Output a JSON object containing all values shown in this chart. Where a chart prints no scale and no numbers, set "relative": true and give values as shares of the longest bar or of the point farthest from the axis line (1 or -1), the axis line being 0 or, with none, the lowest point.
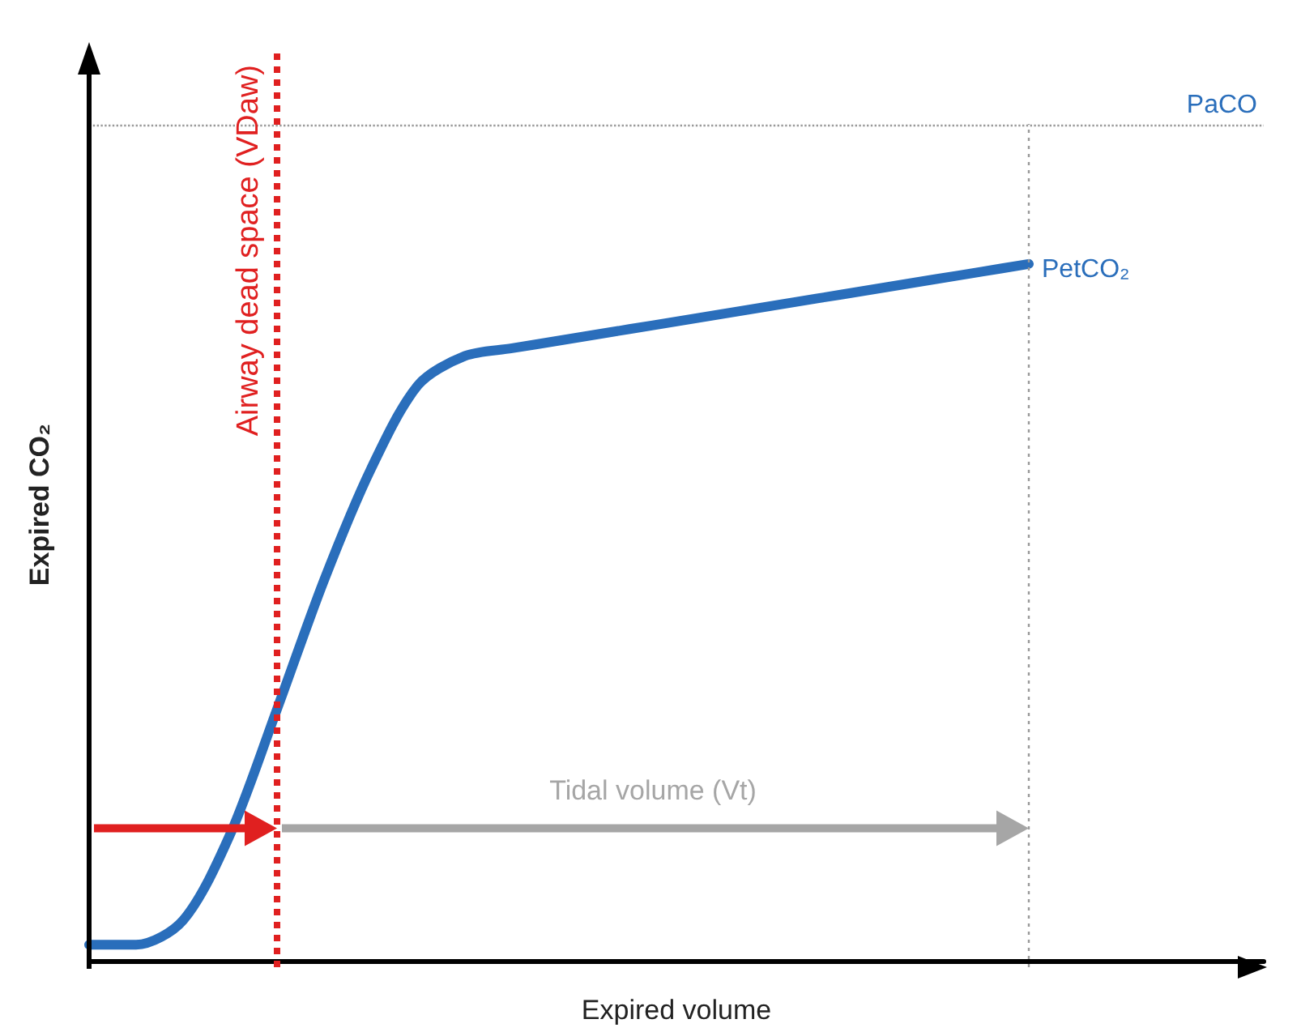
{
  "chart_data": {
    "type": "line",
    "relative": true,
    "xlabel": "Expired volume",
    "ylabel": "Expired CO₂",
    "categories": [
      null,
      null,
      null,
      null,
      null,
      null,
      null,
      null,
      null,
      null,
      null,
      null,
      null,
      null,
      null,
      null,
      null,
      null,
      null,
      null,
      null,
      null,
      null,
      null,
      null,
      null
    ],
    "series": [
      {
        "color": "#2a6ebb",
        "values": [
          0.023,
          0.023,
          0.058,
          0.181,
          0.361,
          0.546,
          0.706,
          0.826,
          0.868,
          0.879,
          0.89,
          0.901,
          0.912,
          0.923,
          0.934,
          0.945,
          0.956,
          0.967,
          0.978,
          0.989,
          1,
          null,
          null,
          null,
          null,
          null
        ]
      }
    ],
    "ref_lines": [
      {
        "axis": "y",
        "value": 1.201,
        "label": "PaCO",
        "color": "#999999",
        "line_style": "dotted"
      }
    ],
    "annotations": [
      "PetCO₂",
      "Tidal volume (Vt)",
      "Airway dead space (VDaw)"
    ],
    "marker": "none",
    "line_style": "solid"
  }
}
